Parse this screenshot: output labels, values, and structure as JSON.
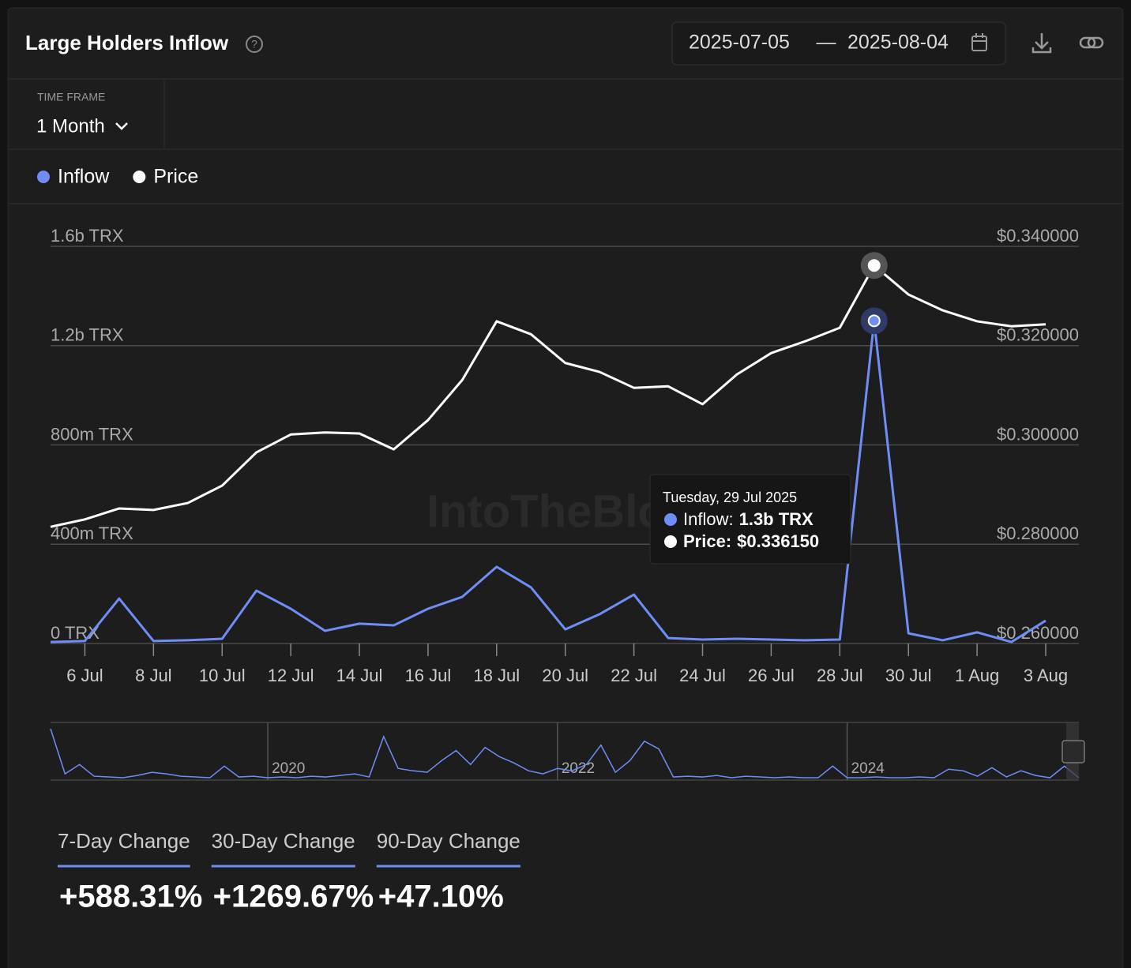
{
  "header": {
    "title": "Large Holders Inflow",
    "date_start": "2025-07-05",
    "separator": "—",
    "date_end": "2025-08-04"
  },
  "timeframe": {
    "label": "TIME FRAME",
    "value": "1 Month"
  },
  "chart_data": {
    "type": "line",
    "categories": [
      null,
      "6 Jul",
      null,
      "8 Jul",
      null,
      "10 Jul",
      null,
      "12 Jul",
      null,
      "14 Jul",
      null,
      "16 Jul",
      null,
      "18 Jul",
      null,
      "20 Jul",
      null,
      "22 Jul",
      null,
      "24 Jul",
      null,
      "26 Jul",
      null,
      "28 Jul",
      null,
      "30 Jul",
      null,
      "1 Aug",
      null,
      "3 Aug"
    ],
    "series": [
      {
        "name": "Inflow",
        "color": "#6f8df5",
        "axis": "y",
        "values": [
          6000000,
          10000000,
          181000000,
          10000000,
          13000000,
          19000000,
          213000000,
          140000000,
          51000000,
          80000000,
          73000000,
          140000000,
          188000000,
          309000000,
          226000000,
          57000000,
          118000000,
          197000000,
          22000000,
          16000000,
          19000000,
          16000000,
          13000000,
          16000000,
          1300000000,
          41000000,
          13000000,
          45000000,
          6000000,
          92000000
        ]
      },
      {
        "name": "Price",
        "color": "#ffffff",
        "axis": "y2",
        "values": [
          0.2835,
          0.285,
          0.2872,
          0.2869,
          0.2883,
          0.2918,
          0.2985,
          0.3021,
          0.3025,
          0.3023,
          0.2991,
          0.305,
          0.3131,
          0.3249,
          0.3223,
          0.3165,
          0.3147,
          0.3115,
          0.3118,
          0.3082,
          0.3142,
          0.3185,
          0.3209,
          0.3236,
          0.33615,
          0.3303,
          0.3271,
          0.3249,
          0.3239,
          0.3243
        ]
      }
    ],
    "ylim": [
      0,
      1600000000
    ],
    "yticks": [
      {
        "value": 0,
        "label": "0 TRX"
      },
      {
        "value": 400000000,
        "label": "400m TRX"
      },
      {
        "value": 800000000,
        "label": "800m TRX"
      },
      {
        "value": 1200000000,
        "label": "1.2b TRX"
      },
      {
        "value": 1600000000,
        "label": "1.6b TRX"
      }
    ],
    "y2lim": [
      0.26,
      0.34
    ],
    "y2ticks": [
      {
        "value": 0.26,
        "label": "$0.260000"
      },
      {
        "value": 0.28,
        "label": "$0.280000"
      },
      {
        "value": 0.3,
        "label": "$0.300000"
      },
      {
        "value": 0.32,
        "label": "$0.320000"
      },
      {
        "value": 0.34,
        "label": "$0.340000"
      }
    ],
    "grid": true,
    "watermark": "IntoTheBlock",
    "tooltip": {
      "date": "Tuesday, 29 Jul 2025",
      "items": [
        {
          "label": "Inflow:",
          "value": "1.3b TRX"
        },
        {
          "label": "Price:",
          "value": "$0.336150"
        }
      ]
    }
  },
  "navigator": {
    "type": "line",
    "color": "#6f8df5",
    "xlim": [
      2018.5,
      2025.6
    ],
    "xticks": [
      2020,
      2022,
      2024
    ],
    "x": [
      2018.5,
      2018.6,
      2018.7,
      2018.8,
      2018.9,
      2019.0,
      2019.1,
      2019.2,
      2019.3,
      2019.4,
      2019.5,
      2019.6,
      2019.7,
      2019.8,
      2019.9,
      2020.0,
      2020.1,
      2020.2,
      2020.3,
      2020.4,
      2020.5,
      2020.6,
      2020.7,
      2020.8,
      2020.9,
      2021.0,
      2021.1,
      2021.2,
      2021.3,
      2021.4,
      2021.5,
      2021.6,
      2021.7,
      2021.8,
      2021.9,
      2022.0,
      2022.1,
      2022.2,
      2022.3,
      2022.4,
      2022.5,
      2022.6,
      2022.7,
      2022.8,
      2022.9,
      2023.0,
      2023.1,
      2023.2,
      2023.3,
      2023.4,
      2023.5,
      2023.6,
      2023.7,
      2023.8,
      2023.9,
      2024.0,
      2024.1,
      2024.2,
      2024.3,
      2024.4,
      2024.5,
      2024.6,
      2024.7,
      2024.8,
      2024.9,
      2025.0,
      2025.1,
      2025.2,
      2025.3,
      2025.4,
      2025.5,
      2025.6
    ],
    "values": [
      66,
      8,
      20,
      5,
      4,
      3,
      6,
      10,
      8,
      5,
      4,
      3,
      18,
      4,
      5,
      3,
      4,
      3,
      5,
      4,
      6,
      8,
      4,
      56,
      15,
      12,
      10,
      25,
      38,
      20,
      42,
      30,
      22,
      12,
      8,
      15,
      12,
      20,
      45,
      10,
      25,
      50,
      40,
      4,
      5,
      4,
      6,
      3,
      5,
      4,
      3,
      4,
      3,
      3,
      18,
      3,
      3,
      4,
      3,
      3,
      4,
      3,
      14,
      12,
      5,
      16,
      4,
      12,
      6,
      3,
      18,
      3
    ]
  },
  "stats": [
    {
      "label": "7-Day Change",
      "value": "+588.31%"
    },
    {
      "label": "30-Day Change",
      "value": "+1269.67%"
    },
    {
      "label": "90-Day Change",
      "value": "+47.10%"
    }
  ]
}
